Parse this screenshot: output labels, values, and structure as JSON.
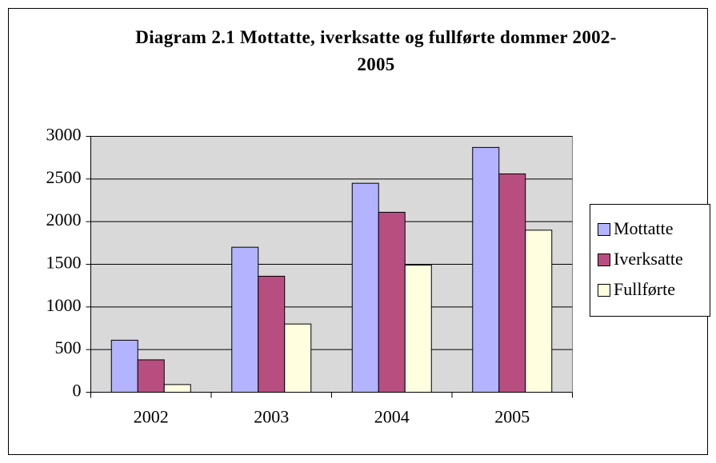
{
  "chart_data": {
    "type": "bar",
    "title": "Diagram 2.1 Mottatte, iverksatte og fullførte dommer 2002-2005",
    "categories": [
      "2002",
      "2003",
      "2004",
      "2005"
    ],
    "series": [
      {
        "name": "Mottatte",
        "color": "#b3b3ff",
        "values": [
          610,
          1700,
          2450,
          2870
        ]
      },
      {
        "name": "Iverksatte",
        "color": "#b84e80",
        "values": [
          380,
          1360,
          2110,
          2560
        ]
      },
      {
        "name": "Fullførte",
        "color": "#ffffe0",
        "values": [
          90,
          800,
          1490,
          1900
        ]
      }
    ],
    "ylim": [
      0,
      3000
    ],
    "yticks": [
      0,
      500,
      1000,
      1500,
      2000,
      2500,
      3000
    ],
    "grid": true,
    "legend": "right"
  }
}
